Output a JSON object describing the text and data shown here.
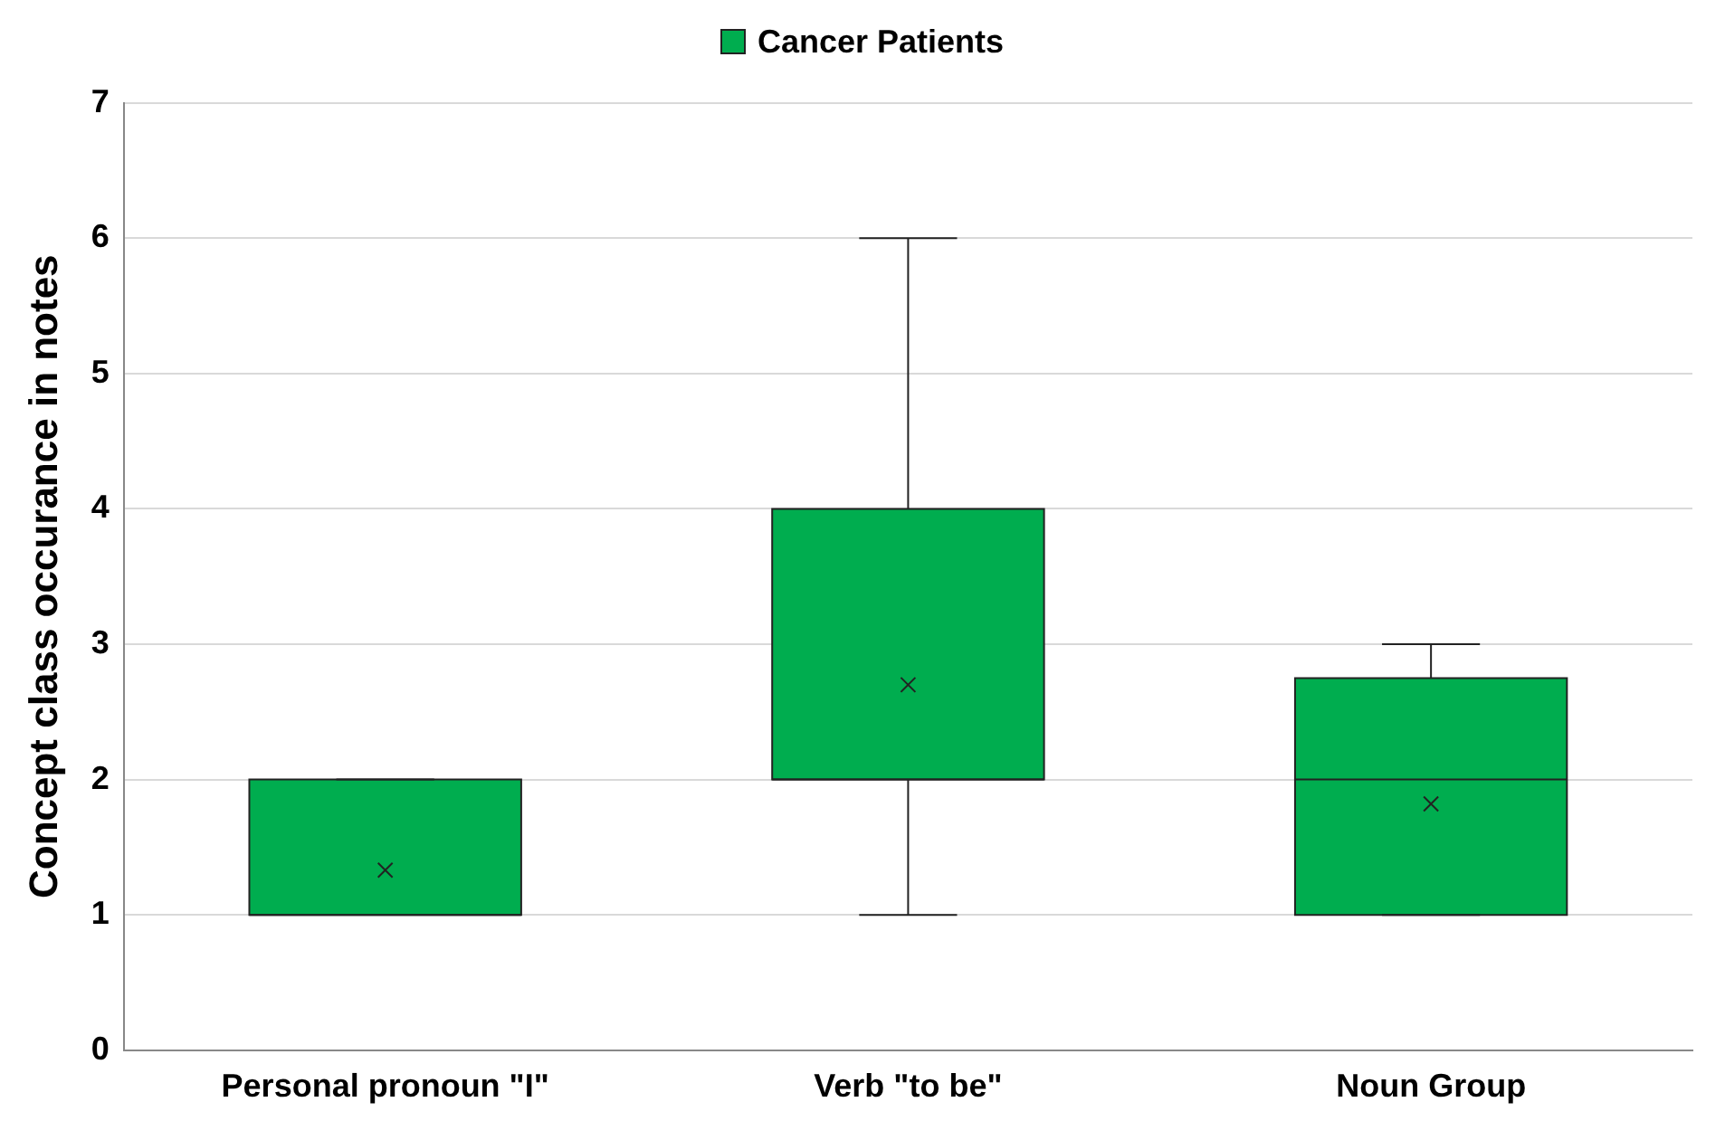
{
  "chart_data": {
    "type": "box",
    "ylabel": "Concept class occurance in notes",
    "categories": [
      "Personal pronoun \"I\"",
      "Verb \"to be\"",
      "Noun Group"
    ],
    "series": [
      {
        "name": "Cancer Patients",
        "color": "#00ad4f",
        "boxes": [
          {
            "low": 1,
            "q1": 1,
            "median": 1,
            "q3": 2,
            "high": 2,
            "mean": 1.33
          },
          {
            "low": 1,
            "q1": 2,
            "median": 2,
            "q3": 4,
            "high": 6,
            "mean": 2.7
          },
          {
            "low": 1,
            "q1": 1,
            "median": 2,
            "q3": 2.75,
            "high": 3,
            "mean": 1.82
          }
        ]
      }
    ],
    "ylim": [
      0,
      7
    ],
    "yticks": [
      0,
      1,
      2,
      3,
      4,
      5,
      6,
      7
    ],
    "grid": "y",
    "legend": "top",
    "marker": "cross"
  }
}
